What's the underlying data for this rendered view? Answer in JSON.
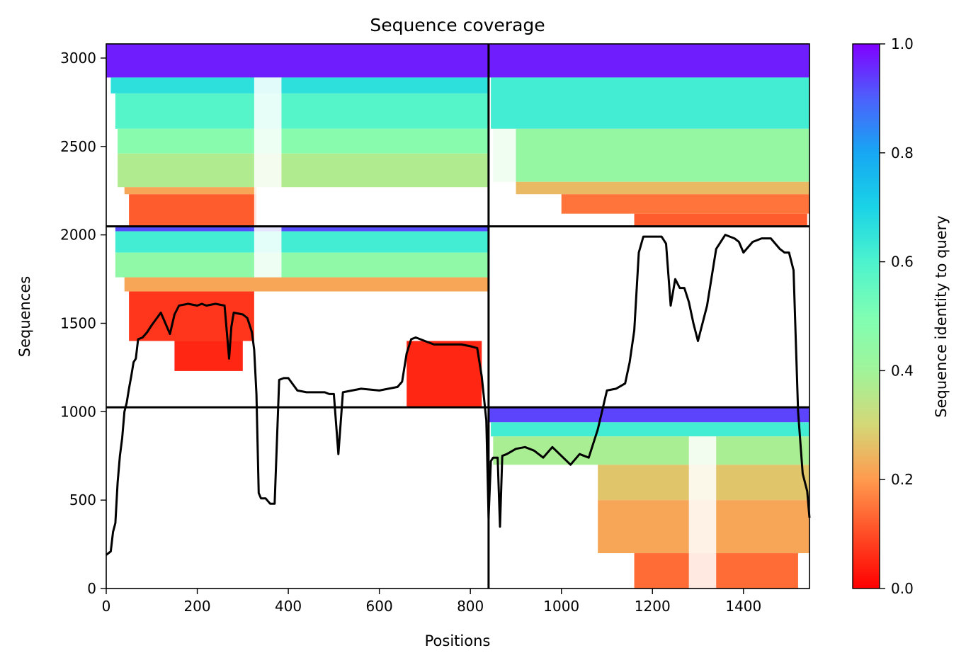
{
  "chart_data": {
    "type": "heatmap",
    "title": "Sequence coverage",
    "xlabel": "Positions",
    "ylabel": "Sequences",
    "xlim": [
      0,
      1545
    ],
    "ylim": [
      0,
      3080
    ],
    "xticks": [
      0,
      200,
      400,
      600,
      800,
      1000,
      1200,
      1400
    ],
    "yticks": [
      0,
      500,
      1000,
      1500,
      2000,
      2500,
      3000
    ],
    "grid": false,
    "colorbar": {
      "label": "Sequence identity to query",
      "range": [
        0.0,
        1.0
      ],
      "ticks": [
        0.0,
        0.2,
        0.4,
        0.6,
        0.8,
        1.0
      ],
      "tick_labels": [
        "0.0",
        "0.2",
        "0.4",
        "0.6",
        "0.8",
        "1.0"
      ],
      "colormap": "rainbow_r"
    },
    "separators": {
      "vertical_x": [
        840
      ],
      "horizontal_y": [
        1025,
        2048
      ]
    },
    "blocks": [
      {
        "name": "chain1-chain1",
        "x": [
          0,
          840
        ],
        "y": [
          2048,
          3080
        ],
        "bands": [
          {
            "y": [
              2890,
              3080
            ],
            "identity": 0.97,
            "x": [
              0,
              840
            ]
          },
          {
            "y": [
              2800,
              2890
            ],
            "identity": 0.66,
            "x": [
              10,
              840
            ]
          },
          {
            "y": [
              2600,
              2800
            ],
            "identity": 0.58,
            "x": [
              20,
              840
            ]
          },
          {
            "y": [
              2460,
              2600
            ],
            "identity": 0.47,
            "x": [
              25,
              840
            ]
          },
          {
            "y": [
              2270,
              2460
            ],
            "identity": 0.37,
            "x": [
              25,
              840
            ]
          },
          {
            "y": [
              2230,
              2270
            ],
            "identity": 0.22,
            "x": [
              40,
              330
            ]
          },
          {
            "y": [
              2048,
              2230
            ],
            "identity": 0.12,
            "x": [
              50,
              330
            ]
          }
        ],
        "gaps": [
          {
            "x": [
              325,
              385
            ],
            "y": [
              2048,
              2890
            ]
          }
        ]
      },
      {
        "name": "chain1-chain2",
        "x": [
          0,
          840
        ],
        "y": [
          1025,
          2048
        ],
        "bands": [
          {
            "y": [
              2020,
              2048
            ],
            "identity": 0.92,
            "x": [
              20,
              840
            ]
          },
          {
            "y": [
              1900,
              2020
            ],
            "identity": 0.62,
            "x": [
              20,
              840
            ]
          },
          {
            "y": [
              1760,
              1900
            ],
            "identity": 0.45,
            "x": [
              20,
              840
            ]
          },
          {
            "y": [
              1680,
              1760
            ],
            "identity": 0.22,
            "x": [
              40,
              840
            ]
          },
          {
            "y": [
              1400,
              1680
            ],
            "identity": 0.07,
            "x": [
              50,
              325
            ]
          },
          {
            "y": [
              1230,
              1400
            ],
            "identity": 0.05,
            "x": [
              150,
              300
            ]
          },
          {
            "y": [
              1025,
              1400
            ],
            "identity": 0.05,
            "x": [
              660,
              825
            ]
          }
        ],
        "gaps": [
          {
            "x": [
              325,
              385
            ],
            "y": [
              1760,
              2048
            ]
          }
        ]
      },
      {
        "name": "chain2-chain1",
        "x": [
          840,
          1545
        ],
        "y": [
          2048,
          3080
        ],
        "bands": [
          {
            "y": [
              2890,
              3080
            ],
            "identity": 0.97,
            "x": [
              840,
              1545
            ]
          },
          {
            "y": [
              2600,
              2890
            ],
            "identity": 0.62,
            "x": [
              845,
              1545
            ]
          },
          {
            "y": [
              2300,
              2600
            ],
            "identity": 0.43,
            "x": [
              850,
              1545
            ]
          },
          {
            "y": [
              2230,
              2300
            ],
            "identity": 0.25,
            "x": [
              900,
              1545
            ]
          },
          {
            "y": [
              2120,
              2230
            ],
            "identity": 0.15,
            "x": [
              1000,
              1545
            ]
          },
          {
            "y": [
              2048,
              2120
            ],
            "identity": 0.12,
            "x": [
              1160,
              1540
            ]
          }
        ],
        "gaps": [
          {
            "x": [
              840,
              900
            ],
            "y": [
              2048,
              2600
            ]
          }
        ]
      },
      {
        "name": "chain2-chain2",
        "x": [
          840,
          1545
        ],
        "y": [
          0,
          1025
        ],
        "bands": [
          {
            "y": [
              940,
              1025
            ],
            "identity": 0.93,
            "x": [
              840,
              1545
            ]
          },
          {
            "y": [
              860,
              940
            ],
            "identity": 0.62,
            "x": [
              845,
              1545
            ]
          },
          {
            "y": [
              700,
              860
            ],
            "identity": 0.38,
            "x": [
              850,
              1545
            ]
          },
          {
            "y": [
              500,
              700
            ],
            "identity": 0.27,
            "x": [
              1080,
              1545
            ]
          },
          {
            "y": [
              200,
              500
            ],
            "identity": 0.22,
            "x": [
              1080,
              1545
            ]
          },
          {
            "y": [
              0,
              200
            ],
            "identity": 0.14,
            "x": [
              1160,
              1520
            ]
          }
        ],
        "gaps": [
          {
            "x": [
              1280,
              1340
            ],
            "y": [
              0,
              860
            ]
          }
        ]
      }
    ],
    "series": [
      {
        "type": "line",
        "color": "#000000",
        "x": [
          0,
          10,
          15,
          20,
          25,
          30,
          35,
          40,
          45,
          50,
          55,
          60,
          65,
          70,
          80,
          90,
          100,
          120,
          140,
          150,
          160,
          180,
          200,
          210,
          220,
          240,
          260,
          270,
          275,
          280,
          300,
          310,
          315,
          320,
          325,
          330,
          335,
          340,
          350,
          360,
          370,
          380,
          390,
          400,
          420,
          440,
          460,
          480,
          490,
          500,
          510,
          520,
          560,
          600,
          640,
          650,
          660,
          670,
          680,
          700,
          720,
          740,
          760,
          780,
          800,
          815,
          825,
          835,
          840,
          845,
          850,
          860,
          865,
          870,
          880,
          900,
          920,
          940,
          960,
          980,
          1000,
          1020,
          1040,
          1060,
          1080,
          1100,
          1120,
          1140,
          1150,
          1160,
          1170,
          1180,
          1200,
          1220,
          1230,
          1240,
          1250,
          1260,
          1270,
          1280,
          1290,
          1300,
          1320,
          1340,
          1360,
          1380,
          1390,
          1400,
          1420,
          1440,
          1460,
          1470,
          1480,
          1490,
          1500,
          1510,
          1520,
          1530,
          1540,
          1545
        ],
        "y": [
          190,
          210,
          320,
          370,
          600,
          750,
          850,
          1000,
          1050,
          1130,
          1200,
          1280,
          1300,
          1410,
          1420,
          1450,
          1490,
          1560,
          1440,
          1550,
          1600,
          1610,
          1600,
          1610,
          1600,
          1610,
          1600,
          1300,
          1480,
          1560,
          1550,
          1530,
          1490,
          1450,
          1350,
          1100,
          540,
          510,
          510,
          480,
          480,
          1180,
          1190,
          1190,
          1120,
          1110,
          1110,
          1110,
          1100,
          1100,
          760,
          1110,
          1130,
          1120,
          1140,
          1170,
          1330,
          1410,
          1420,
          1400,
          1380,
          1380,
          1380,
          1380,
          1370,
          1360,
          1200,
          950,
          400,
          720,
          740,
          740,
          350,
          750,
          760,
          790,
          800,
          780,
          740,
          800,
          750,
          700,
          760,
          740,
          900,
          1120,
          1130,
          1160,
          1280,
          1460,
          1900,
          1990,
          1990,
          1990,
          1950,
          1600,
          1750,
          1700,
          1700,
          1620,
          1500,
          1400,
          1600,
          1920,
          2000,
          1980,
          1960,
          1900,
          1960,
          1980,
          1980,
          1950,
          1920,
          1900,
          1900,
          1800,
          1000,
          650,
          550,
          400
        ]
      }
    ]
  }
}
